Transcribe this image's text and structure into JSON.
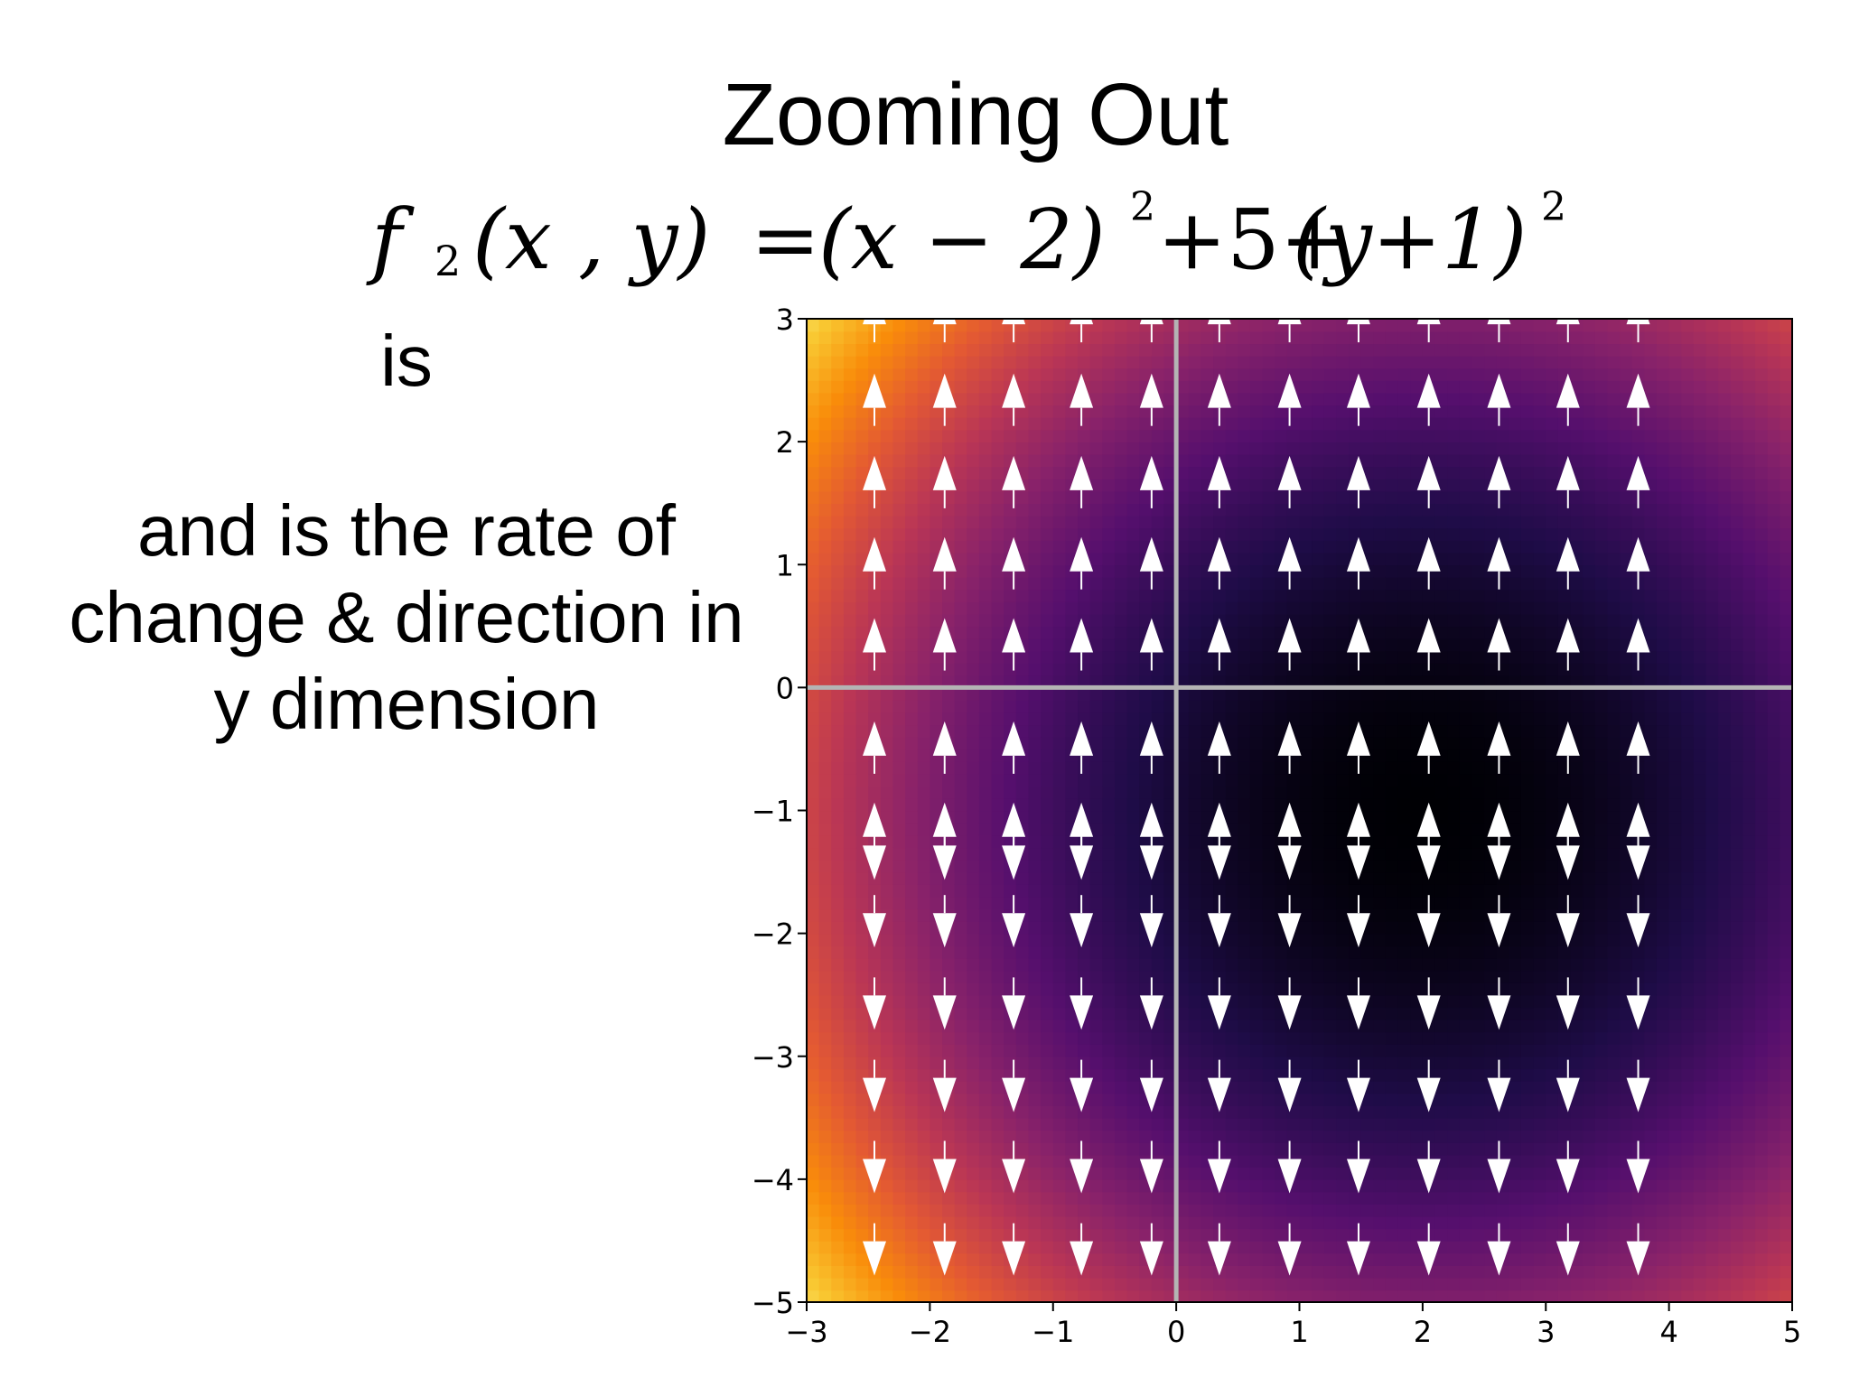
{
  "slide": {
    "title": "Zooming Out",
    "formula": {
      "func": "f",
      "sub": "2",
      "args": "(x , y)",
      "eq": "=",
      "rhs_1": "(x − 2)",
      "sup_1": "2",
      "rhs_2": "+5+",
      "rhs_3": "(y+1)",
      "sup_2": "2"
    },
    "text_is": "is",
    "text_lines": [
      "and is the rate of",
      "change & direction in",
      "y dimension"
    ]
  },
  "chart_data": {
    "type": "heatmap",
    "overlay": "quiver",
    "colormap": "inferno",
    "function": "(x-2)^2+5+(y+1)^2",
    "xlim": [
      -3,
      5
    ],
    "ylim": [
      -5,
      3
    ],
    "xticks": [
      "−3",
      "−2",
      "−1",
      "0",
      "1",
      "2",
      "3",
      "4",
      "5"
    ],
    "yticks": [
      "3",
      "2",
      "1",
      "0",
      "−1",
      "−2",
      "−3",
      "−4",
      "−5"
    ],
    "xtick_values": [
      -3,
      -2,
      -1,
      0,
      1,
      2,
      3,
      4,
      5
    ],
    "ytick_values": [
      3,
      2,
      1,
      0,
      -1,
      -2,
      -3,
      -4,
      -5
    ],
    "arrow_columns": [
      -2.45,
      -1.88,
      -1.32,
      -0.77,
      -0.2,
      0.35,
      0.92,
      1.48,
      2.05,
      2.62,
      3.18,
      3.75
    ],
    "arrow_rows": [
      3.0,
      2.32,
      1.65,
      0.99,
      0.33,
      -0.51,
      -1.17,
      -1.33,
      -1.88,
      -2.55,
      -3.22,
      -3.88,
      -4.55
    ],
    "arrow_color": "#ffffff",
    "axis_line_color": "#b4b4b4",
    "axis_lines": {
      "x": 0,
      "y": 0
    },
    "grid": false
  }
}
